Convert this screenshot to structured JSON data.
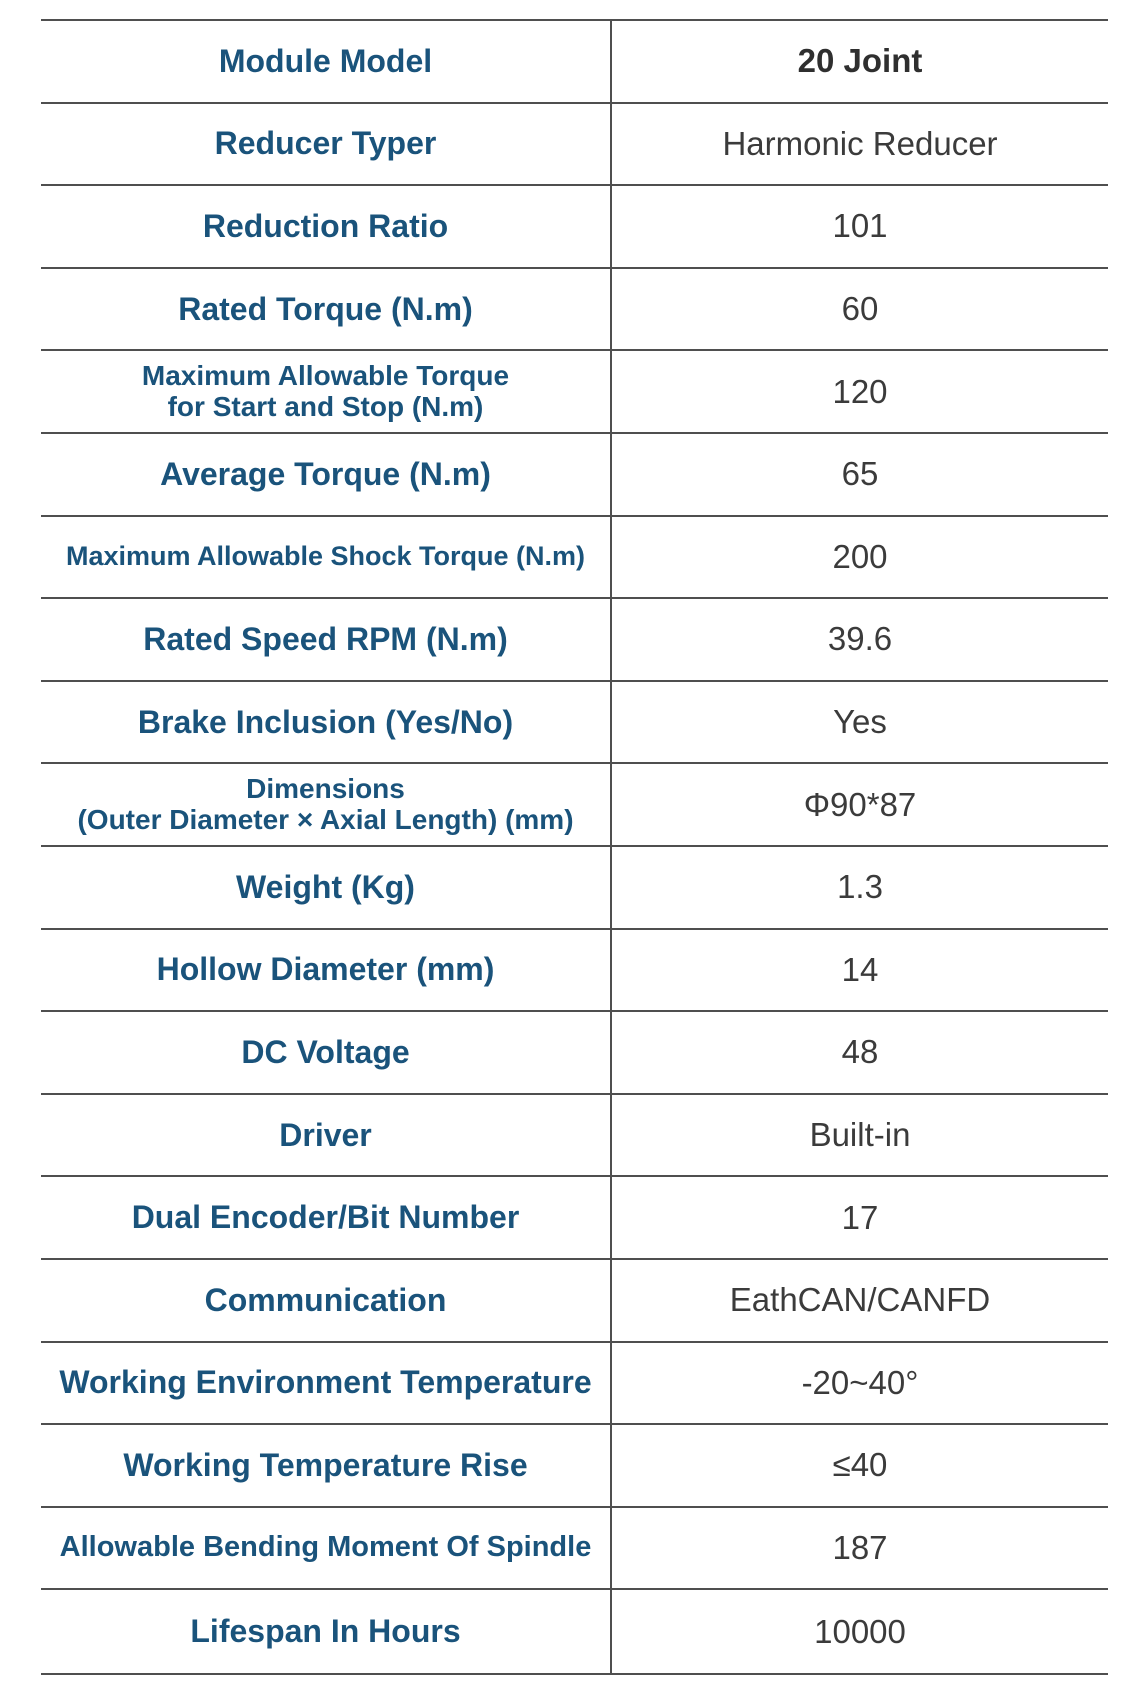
{
  "colors": {
    "label_blue": "#1a537b",
    "value_gray": "#3b3b3b",
    "border_gray": "#4f4f4f",
    "background": "#ffffff"
  },
  "table": {
    "rows": [
      {
        "label": "Module Model",
        "value": "20 Joint"
      },
      {
        "label": "Reducer Typer",
        "value": "Harmonic Reducer"
      },
      {
        "label": "Reduction Ratio",
        "value": "101"
      },
      {
        "label": "Rated Torque (N.m)",
        "value": "60"
      },
      {
        "label": "Maximum Allowable Torque\nfor Start and Stop (N.m)",
        "value": "120"
      },
      {
        "label": "Average Torque (N.m)",
        "value": "65"
      },
      {
        "label": "Maximum Allowable Shock Torque (N.m)",
        "value": "200"
      },
      {
        "label": "Rated Speed RPM (N.m)",
        "value": "39.6"
      },
      {
        "label": "Brake Inclusion (Yes/No)",
        "value": "Yes"
      },
      {
        "label": "Dimensions\n(Outer Diameter × Axial Length) (mm)",
        "value": "Φ90*87"
      },
      {
        "label": "Weight (Kg)",
        "value": "1.3"
      },
      {
        "label": "Hollow Diameter (mm)",
        "value": "14"
      },
      {
        "label": "DC Voltage",
        "value": "48"
      },
      {
        "label": "Driver",
        "value": "Built-in"
      },
      {
        "label": "Dual Encoder/Bit Number",
        "value": "17"
      },
      {
        "label": "Communication",
        "value": "EathCAN/CANFD"
      },
      {
        "label": "Working Environment Temperature",
        "value": "-20~40°"
      },
      {
        "label": "Working Temperature Rise",
        "value": "≤40"
      },
      {
        "label": "Allowable Bending Moment Of Spindle",
        "value": "187"
      },
      {
        "label": "Lifespan In Hours",
        "value": "10000"
      }
    ]
  }
}
